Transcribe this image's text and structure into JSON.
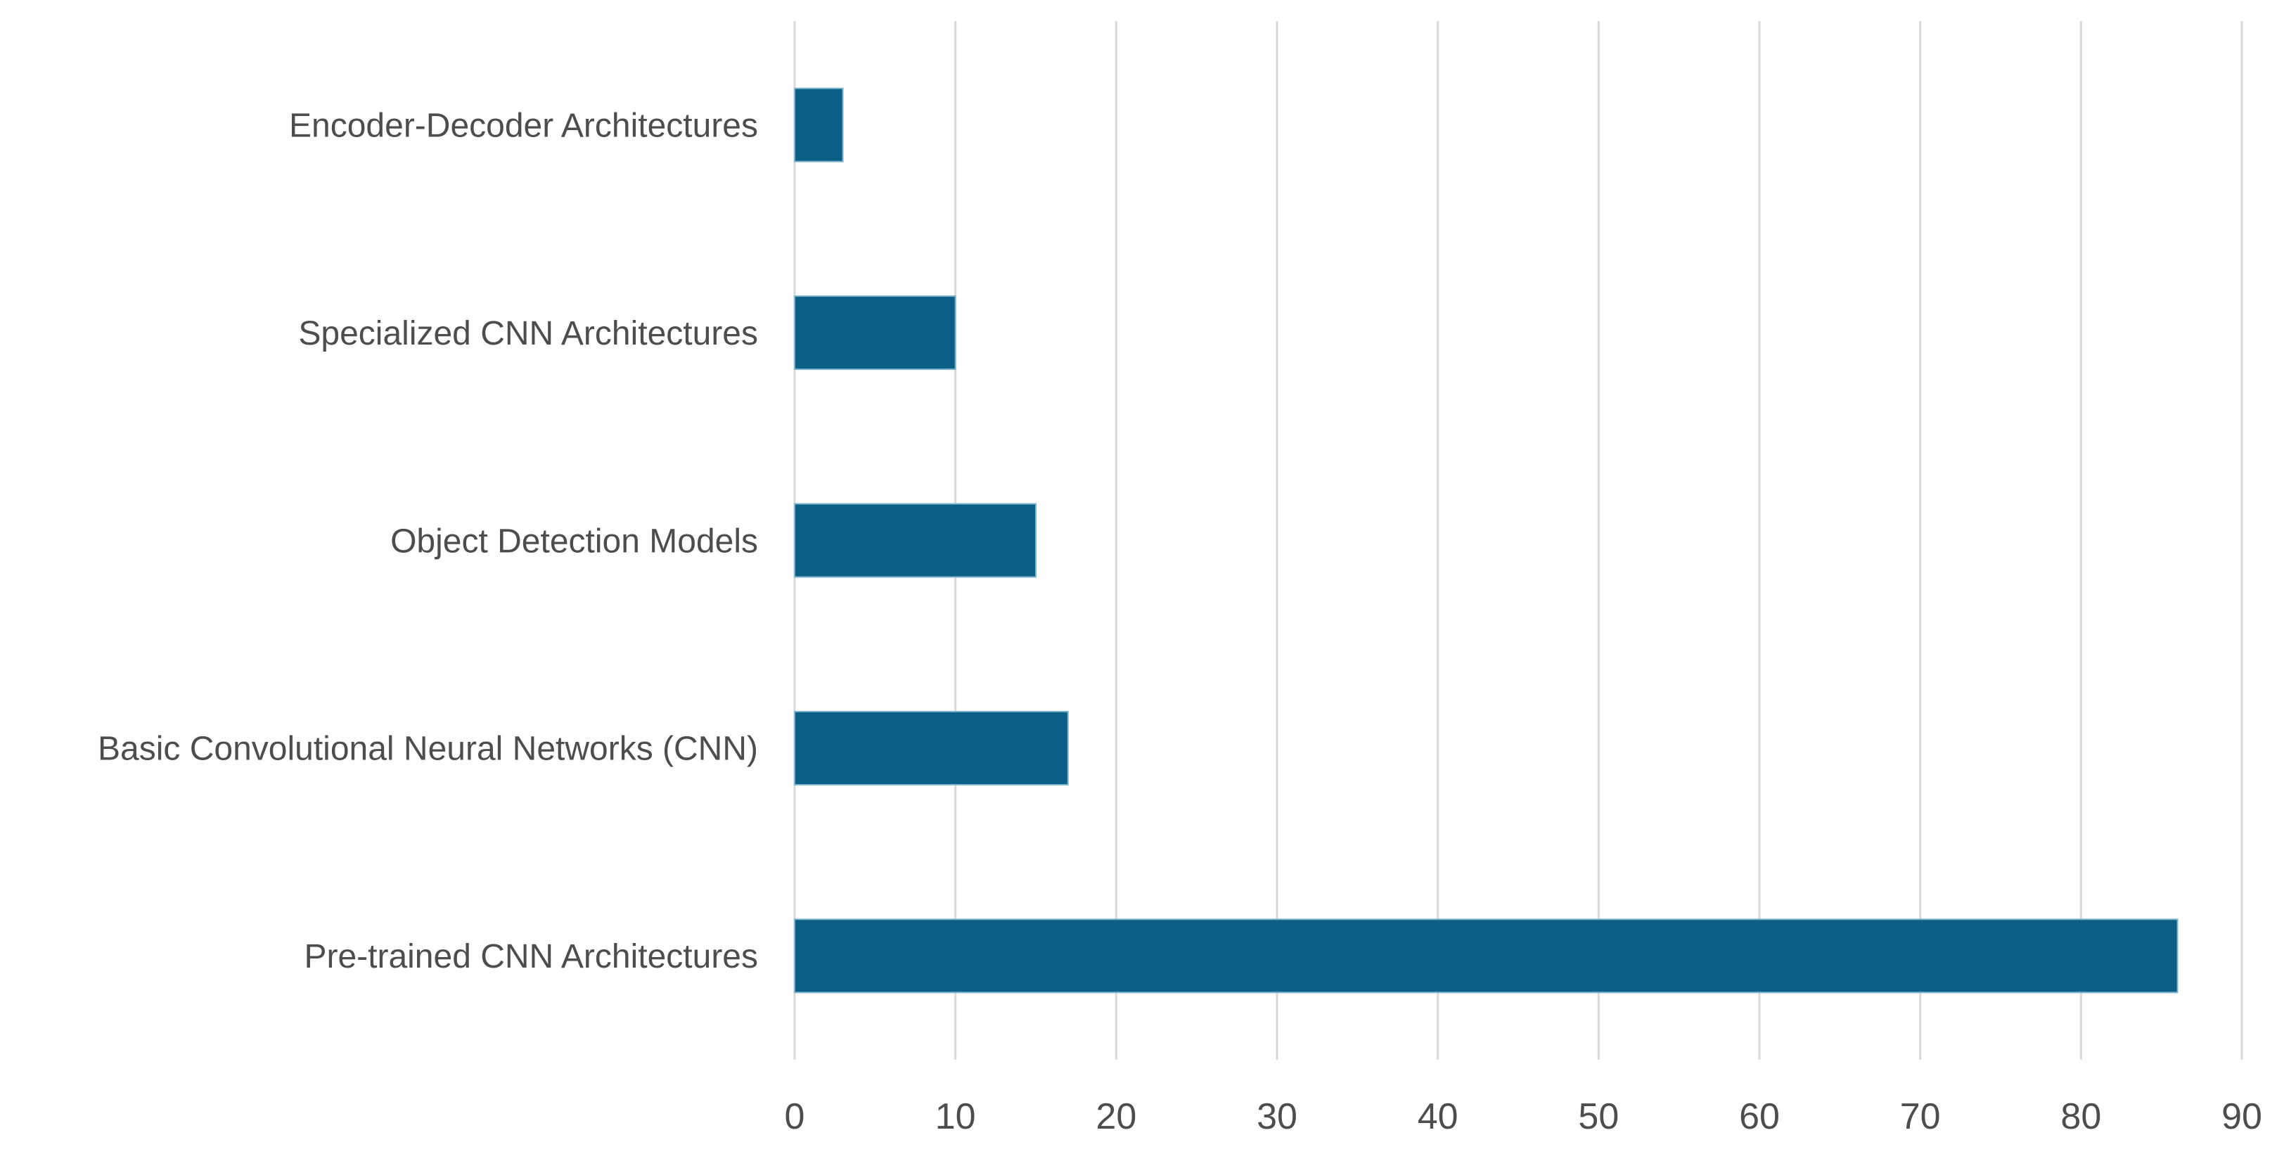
{
  "chart_data": {
    "type": "bar",
    "orientation": "horizontal",
    "title": "",
    "xlabel": "",
    "ylabel": "",
    "categories_top_to_bottom": [
      "Encoder-Decoder Architectures",
      "Specialized CNN Architectures",
      "Object Detection Models",
      "Basic Convolutional Neural Networks (CNN)",
      "Pre-trained CNN Architectures"
    ],
    "values": [
      3,
      10,
      15,
      17,
      86
    ],
    "xlim": [
      0,
      90
    ],
    "xticks": [
      0,
      10,
      20,
      30,
      40,
      50,
      60,
      70,
      80,
      90
    ],
    "grid": "vertical-major",
    "legend": "none",
    "colors": {
      "bar_fill": "#0B5E84",
      "bar_edge": "#7CB4D0",
      "gridline": "#D9D9D9",
      "tick_label_text": "#4D4D4D",
      "category_label_text": "#4D4D4D",
      "background": "#FFFFFF"
    }
  }
}
